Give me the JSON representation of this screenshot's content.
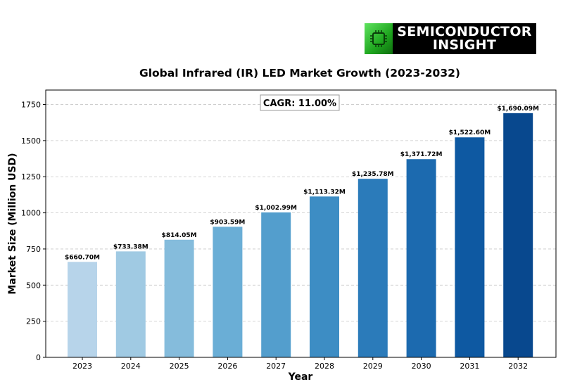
{
  "logo": {
    "line1": "SEMICONDUCTOR",
    "line2": "INSIGHT",
    "icon": "chip-icon",
    "colors": {
      "background": "#000000",
      "icon": "#2fc12f",
      "text": "#ffffff"
    }
  },
  "chart_data": {
    "type": "bar",
    "title": "Global Infrared (IR) LED Market Growth (2023-2032)",
    "xlabel": "Year",
    "ylabel": "Market Size (Million USD)",
    "annotation": "CAGR: 11.00%",
    "categories": [
      "2023",
      "2024",
      "2025",
      "2026",
      "2027",
      "2028",
      "2029",
      "2030",
      "2031",
      "2032"
    ],
    "values": [
      660.7,
      733.38,
      814.05,
      903.59,
      1002.99,
      1113.32,
      1235.78,
      1371.72,
      1522.6,
      1690.09
    ],
    "value_labels": [
      "$660.70M",
      "$733.38M",
      "$814.05M",
      "$903.59M",
      "$1,002.99M",
      "$1,113.32M",
      "$1,235.78M",
      "$1,371.72M",
      "$1,522.60M",
      "$1,690.09M"
    ],
    "colors": [
      "#b7d4ea",
      "#a0cae3",
      "#85bcdc",
      "#6aaed6",
      "#539ecd",
      "#3d8dc4",
      "#2b7bba",
      "#1c6aaf",
      "#0e59a2",
      "#08488e"
    ],
    "yticks": [
      0,
      250,
      500,
      750,
      1000,
      1250,
      1500,
      1750
    ],
    "ylim": [
      0,
      1850
    ],
    "grid": "y-dashed",
    "legend": "none"
  }
}
